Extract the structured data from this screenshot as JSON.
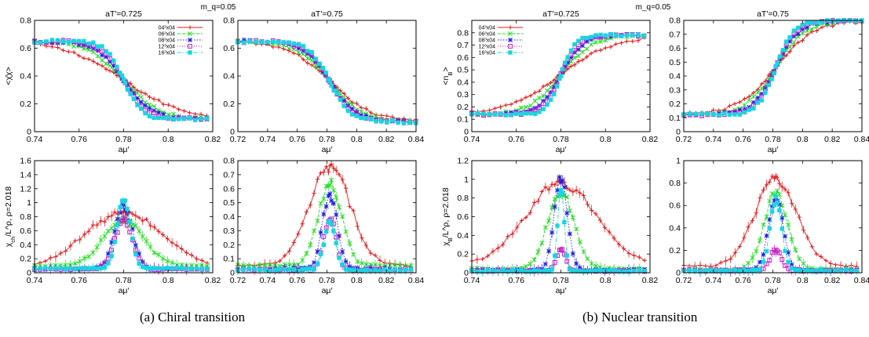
{
  "figure": {
    "subcaptions": [
      "(a)  Chiral transition",
      "(b)  Nuclear transition"
    ],
    "group_titles": [
      "m_q=0.05",
      "m_q=0.05"
    ]
  },
  "series_styles": [
    {
      "label": "04³x04",
      "color": "#e41a1c",
      "marker": "plus",
      "dash": ""
    },
    {
      "label": "06³x04",
      "color": "#22dd22",
      "marker": "cross",
      "dash": "4 2"
    },
    {
      "label": "08³x04",
      "color": "#1f1fe0",
      "marker": "star",
      "dash": "1.5 2"
    },
    {
      "label": "12³x04",
      "color": "#c41ec4",
      "marker": "square",
      "dash": "1 2"
    },
    {
      "label": "16³x04",
      "color": "#16d6e0",
      "marker": "filled-square",
      "dash": "5 2 1 2"
    }
  ],
  "chart_data": [
    {
      "id": "chiral-top-left",
      "type": "scatter",
      "title": "aT′=0.725",
      "xlabel": "aμ′",
      "ylabel": "<χ̄χ>",
      "xlim": [
        0.74,
        0.82
      ],
      "ylim": [
        0,
        0.8
      ],
      "xticks": [
        0.74,
        0.76,
        0.78,
        0.8,
        0.82
      ],
      "xtick_labels": [
        "0.74",
        "0.76",
        "0.78",
        "0.8",
        "0.82"
      ],
      "yticks": [
        0,
        0.2,
        0.4,
        0.6,
        0.8
      ],
      "ytick_labels": [
        "0",
        "0.2",
        "0.4",
        "0.6",
        "0.8"
      ],
      "legend": "top-right",
      "curve": "sigmoid-down",
      "params": {
        "hi": 0.65,
        "lo": 0.09,
        "c": 0.78
      },
      "series": [
        {
          "name": "04³x04",
          "width": 0.013
        },
        {
          "name": "06³x04",
          "width": 0.008
        },
        {
          "name": "08³x04",
          "width": 0.006
        },
        {
          "name": "12³x04",
          "width": 0.005
        },
        {
          "name": "16³x04",
          "width": 0.004
        }
      ]
    },
    {
      "id": "chiral-top-right",
      "type": "scatter",
      "title": "aT′=0.75",
      "xlabel": "aμ′",
      "ylabel": "",
      "xlim": [
        0.72,
        0.84
      ],
      "ylim": [
        0,
        0.8
      ],
      "xticks": [
        0.72,
        0.74,
        0.76,
        0.78,
        0.8,
        0.82,
        0.84
      ],
      "xtick_labels": [
        "0.72",
        "0.74",
        "0.76",
        "0.78",
        "0.8",
        "0.82",
        "0.84"
      ],
      "yticks": [
        0,
        0.2,
        0.4,
        0.6,
        0.8
      ],
      "ytick_labels": [
        "0",
        "0.2",
        "0.4",
        "0.6",
        "0.8"
      ],
      "legend": "none",
      "curve": "sigmoid-down",
      "params": {
        "hi": 0.65,
        "lo": 0.07,
        "c": 0.782
      },
      "series": [
        {
          "name": "04³x04",
          "width": 0.014
        },
        {
          "name": "06³x04",
          "width": 0.011
        },
        {
          "name": "08³x04",
          "width": 0.009
        },
        {
          "name": "12³x04",
          "width": 0.008
        },
        {
          "name": "16³x04",
          "width": 0.007
        }
      ]
    },
    {
      "id": "chiral-bottom-left",
      "type": "scatter",
      "title": "",
      "xlabel": "aμ′",
      "ylabel": "χ_ch/L^ρ, ρ=2.018",
      "xlim": [
        0.74,
        0.82
      ],
      "ylim": [
        0,
        1.6
      ],
      "xticks": [
        0.74,
        0.76,
        0.78,
        0.8,
        0.82
      ],
      "xtick_labels": [
        "0.74",
        "0.76",
        "0.78",
        "0.8",
        "0.82"
      ],
      "yticks": [
        0,
        0.2,
        0.4,
        0.6,
        0.8,
        1,
        1.2,
        1.4,
        1.6
      ],
      "ytick_labels": [
        "0",
        "0.2",
        "0.4",
        "0.6",
        "0.8",
        "1",
        "1.2",
        "1.4",
        "1.6"
      ],
      "legend": "none",
      "curve": "peak",
      "params": {
        "c": 0.78
      },
      "series": [
        {
          "name": "04³x04",
          "peak": 0.85,
          "width": 0.018,
          "base": 0.05
        },
        {
          "name": "06³x04",
          "peak": 0.75,
          "width": 0.009,
          "base": 0.1
        },
        {
          "name": "08³x04",
          "peak": 0.95,
          "width": 0.004,
          "base": 0.06
        },
        {
          "name": "12³x04",
          "peak": 0.75,
          "width": 0.004,
          "base": 0.05
        },
        {
          "name": "16³x04",
          "peak": 1.05,
          "width": 0.003,
          "base": 0.06
        }
      ]
    },
    {
      "id": "chiral-bottom-right",
      "type": "scatter",
      "title": "",
      "xlabel": "aμ′",
      "ylabel": "",
      "xlim": [
        0.72,
        0.84
      ],
      "ylim": [
        0,
        0.8
      ],
      "xticks": [
        0.72,
        0.74,
        0.76,
        0.78,
        0.8,
        0.82,
        0.84
      ],
      "xtick_labels": [
        "0.72",
        "0.74",
        "0.76",
        "0.78",
        "0.8",
        "0.82",
        "0.84"
      ],
      "yticks": [
        0,
        0.1,
        0.2,
        0.3,
        0.4,
        0.5,
        0.6,
        0.7,
        0.8
      ],
      "ytick_labels": [
        "0",
        "0.1",
        "0.2",
        "0.3",
        "0.4",
        "0.5",
        "0.6",
        "0.7",
        "0.8"
      ],
      "legend": "none",
      "curve": "peak",
      "params": {
        "c": 0.782
      },
      "series": [
        {
          "name": "04³x04",
          "peak": 0.75,
          "width": 0.014,
          "base": 0.05
        },
        {
          "name": "06³x04",
          "peak": 0.63,
          "width": 0.008,
          "base": 0.05
        },
        {
          "name": "08³x04",
          "peak": 0.55,
          "width": 0.005,
          "base": 0.03
        },
        {
          "name": "12³x04",
          "peak": 0.4,
          "width": 0.004,
          "base": 0.02
        },
        {
          "name": "16³x04",
          "peak": 0.35,
          "width": 0.004,
          "base": 0.02
        }
      ]
    },
    {
      "id": "nuclear-top-left",
      "type": "scatter",
      "title": "aT′=0.725",
      "xlabel": "aμ′",
      "ylabel": "<n_B>",
      "xlim": [
        0.74,
        0.82
      ],
      "ylim": [
        0,
        0.9
      ],
      "xticks": [
        0.74,
        0.76,
        0.78,
        0.8,
        0.82
      ],
      "xtick_labels": [
        "0.74",
        "0.76",
        "0.78",
        "0.8",
        "0.82"
      ],
      "yticks": [
        0,
        0.1,
        0.2,
        0.3,
        0.4,
        0.5,
        0.6,
        0.7,
        0.8
      ],
      "ytick_labels": [
        "0",
        "0.1",
        "0.2",
        "0.3",
        "0.4",
        "0.5",
        "0.6",
        "0.7",
        "0.8"
      ],
      "legend": "top-left",
      "curve": "sigmoid-up",
      "params": {
        "lo": 0.14,
        "hi": 0.78,
        "c": 0.78
      },
      "series": [
        {
          "name": "04³x04",
          "width": 0.012
        },
        {
          "name": "06³x04",
          "width": 0.007
        },
        {
          "name": "08³x04",
          "width": 0.005
        },
        {
          "name": "12³x04",
          "width": 0.004
        },
        {
          "name": "16³x04",
          "width": 0.003
        }
      ]
    },
    {
      "id": "nuclear-top-right",
      "type": "scatter",
      "title": "aT′=0.75",
      "xlabel": "aμ′",
      "ylabel": "",
      "xlim": [
        0.72,
        0.84
      ],
      "ylim": [
        0,
        0.8
      ],
      "xticks": [
        0.72,
        0.74,
        0.76,
        0.78,
        0.8,
        0.82,
        0.84
      ],
      "xtick_labels": [
        "0.72",
        "0.74",
        "0.76",
        "0.78",
        "0.8",
        "0.82",
        "0.84"
      ],
      "yticks": [
        0,
        0.1,
        0.2,
        0.3,
        0.4,
        0.5,
        0.6,
        0.7,
        0.8
      ],
      "ytick_labels": [
        "0",
        "0.1",
        "0.2",
        "0.3",
        "0.4",
        "0.5",
        "0.6",
        "0.7",
        "0.8"
      ],
      "legend": "none",
      "curve": "sigmoid-up",
      "params": {
        "lo": 0.12,
        "hi": 0.8,
        "c": 0.782
      },
      "series": [
        {
          "name": "04³x04",
          "width": 0.013
        },
        {
          "name": "06³x04",
          "width": 0.01
        },
        {
          "name": "08³x04",
          "width": 0.008
        },
        {
          "name": "12³x04",
          "width": 0.007
        },
        {
          "name": "16³x04",
          "width": 0.006
        }
      ]
    },
    {
      "id": "nuclear-bottom-left",
      "type": "scatter",
      "title": "",
      "xlabel": "aμ′",
      "ylabel": "χ_B/L^ρ, ρ=2.018",
      "xlim": [
        0.74,
        0.82
      ],
      "ylim": [
        0,
        1.2
      ],
      "xticks": [
        0.74,
        0.76,
        0.78,
        0.8,
        0.82
      ],
      "xtick_labels": [
        "0.74",
        "0.76",
        "0.78",
        "0.8",
        "0.82"
      ],
      "yticks": [
        0,
        0.2,
        0.4,
        0.6,
        0.8,
        1,
        1.2
      ],
      "ytick_labels": [
        "0",
        "0.2",
        "0.4",
        "0.6",
        "0.8",
        "1",
        "1.2"
      ],
      "legend": "none",
      "curve": "peak",
      "params": {
        "c": 0.78
      },
      "series": [
        {
          "name": "04³x04",
          "peak": 0.95,
          "width": 0.016,
          "base": 0.08
        },
        {
          "name": "06³x04",
          "peak": 0.85,
          "width": 0.006,
          "base": 0.04
        },
        {
          "name": "08³x04",
          "peak": 1.0,
          "width": 0.003,
          "base": 0.03
        },
        {
          "name": "12³x04",
          "peak": 0.25,
          "width": 0.002,
          "base": 0.02
        },
        {
          "name": "16³x04",
          "peak": 0.9,
          "width": 0.0015,
          "base": 0.02
        }
      ]
    },
    {
      "id": "nuclear-bottom-right",
      "type": "scatter",
      "title": "",
      "xlabel": "aμ′",
      "ylabel": "",
      "xlim": [
        0.72,
        0.84
      ],
      "ylim": [
        0,
        1.0
      ],
      "xticks": [
        0.72,
        0.74,
        0.76,
        0.78,
        0.8,
        0.82,
        0.84
      ],
      "xtick_labels": [
        "0.72",
        "0.74",
        "0.76",
        "0.78",
        "0.8",
        "0.82",
        "0.84"
      ],
      "yticks": [
        0,
        0.2,
        0.4,
        0.6,
        0.8,
        1
      ],
      "ytick_labels": [
        "0",
        "0.2",
        "0.4",
        "0.6",
        "0.8",
        "1"
      ],
      "legend": "none",
      "curve": "peak",
      "params": {
        "c": 0.782
      },
      "series": [
        {
          "name": "04³x04",
          "peak": 0.84,
          "width": 0.014,
          "base": 0.06
        },
        {
          "name": "06³x04",
          "peak": 0.7,
          "width": 0.008,
          "base": 0.03
        },
        {
          "name": "08³x04",
          "peak": 0.65,
          "width": 0.005,
          "base": 0.02
        },
        {
          "name": "12³x04",
          "peak": 0.2,
          "width": 0.004,
          "base": 0.02
        },
        {
          "name": "16³x04",
          "peak": 0.65,
          "width": 0.004,
          "base": 0.02
        }
      ]
    }
  ]
}
